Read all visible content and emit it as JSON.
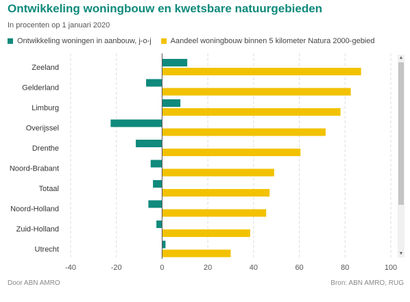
{
  "header": {
    "title": "Ontwikkeling woningbouw en kwetsbare natuurgebieden",
    "subtitle": "In procenten op 1 januari 2020"
  },
  "footer": {
    "left": "Door ABN AMRO",
    "right": "Bron: ABN AMRO, RUG"
  },
  "colors": {
    "teal": "#0f8a7c",
    "yellow": "#f2c200",
    "grid": "#dddddd",
    "zero_line": "#555555"
  },
  "chart_data": {
    "type": "bar",
    "orientation": "horizontal",
    "categories": [
      "Zeeland",
      "Gelderland",
      "Limburg",
      "Overijssel",
      "Drenthe",
      "Noord-Brabant",
      "Totaal",
      "Noord-Holland",
      "Zuid-Holland",
      "Utrecht"
    ],
    "series": [
      {
        "name": "Ontwikkeling woningen in aanbouw, j-o-j",
        "color": "#0f8a7c",
        "values": [
          11,
          -7,
          8,
          -22.5,
          -11.5,
          -5,
          -4,
          -6,
          -2.5,
          1.5
        ]
      },
      {
        "name": "Aandeel woningbouw binnen 5 kilometer Natura 2000-gebied",
        "color": "#f2c200",
        "values": [
          87,
          82.5,
          78,
          71.5,
          60.5,
          49,
          47,
          45.5,
          38.5,
          30
        ]
      }
    ],
    "xlim": [
      -40,
      100
    ],
    "xticks": [
      -40,
      -20,
      0,
      20,
      40,
      60,
      80,
      100
    ],
    "grid": "vertical dashed",
    "legend_position": "top"
  }
}
